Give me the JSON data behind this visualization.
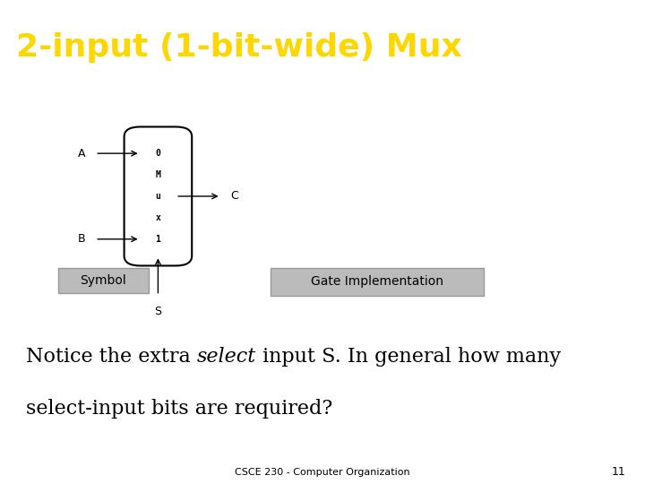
{
  "title": "2-input (1-bit-wide) Mux",
  "title_color": "#FFD700",
  "title_bg": "#000000",
  "title_fontsize": 26,
  "body_bg": "#FFFFFF",
  "symbol_label": "Symbol",
  "gate_label": "Gate Implementation",
  "footer_text": "CSCE 230 - Computer Organization",
  "footer_page": "11",
  "input_A": "A",
  "input_B": "B",
  "output_C": "C",
  "select_S": "S",
  "label_gray": "#BBBBBB",
  "label_edge": "#999999"
}
